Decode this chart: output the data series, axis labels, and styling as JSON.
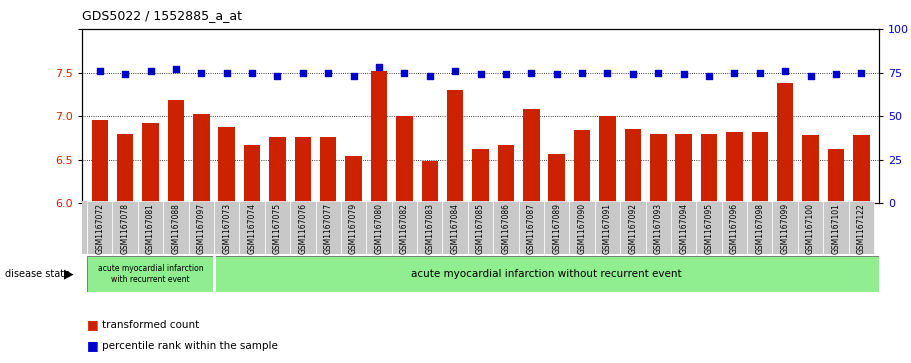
{
  "title": "GDS5022 / 1552885_a_at",
  "samples": [
    "GSM1167072",
    "GSM1167078",
    "GSM1167081",
    "GSM1167088",
    "GSM1167097",
    "GSM1167073",
    "GSM1167074",
    "GSM1167075",
    "GSM1167076",
    "GSM1167077",
    "GSM1167079",
    "GSM1167080",
    "GSM1167082",
    "GSM1167083",
    "GSM1167084",
    "GSM1167085",
    "GSM1167086",
    "GSM1167087",
    "GSM1167089",
    "GSM1167090",
    "GSM1167091",
    "GSM1167092",
    "GSM1167093",
    "GSM1167094",
    "GSM1167095",
    "GSM1167096",
    "GSM1167098",
    "GSM1167099",
    "GSM1167100",
    "GSM1167101",
    "GSM1167122"
  ],
  "bar_values": [
    6.96,
    6.8,
    6.92,
    7.18,
    7.03,
    6.88,
    6.67,
    6.76,
    6.76,
    6.76,
    6.54,
    7.52,
    7.0,
    6.48,
    7.3,
    6.62,
    6.67,
    7.08,
    6.57,
    6.84,
    7.0,
    6.85,
    6.8,
    6.8,
    6.8,
    6.82,
    6.82,
    7.38,
    6.78,
    6.62,
    6.78
  ],
  "dot_values": [
    76,
    74,
    76,
    77,
    75,
    75,
    75,
    73,
    75,
    75,
    73,
    78,
    75,
    73,
    76,
    74,
    74,
    75,
    74,
    75,
    75,
    74,
    75,
    74,
    73,
    75,
    75,
    76,
    73,
    74,
    75
  ],
  "group1_count": 5,
  "group1_label": "acute myocardial infarction\nwith recurrent event",
  "group2_label": "acute myocardial infarction without recurrent event",
  "ylim_left": [
    6.0,
    8.0
  ],
  "ylim_right": [
    0,
    100
  ],
  "yticks_left": [
    6.0,
    6.5,
    7.0,
    7.5,
    8.0
  ],
  "yticks_right": [
    0,
    25,
    50,
    75,
    100
  ],
  "bar_color": "#CC2200",
  "dot_color": "#0000CC",
  "group1_bg": "#C8C8C8",
  "group2_bg": "#90EE90",
  "legend_bar_label": "transformed count",
  "legend_dot_label": "percentile rank within the sample",
  "disease_state_label": "disease state"
}
